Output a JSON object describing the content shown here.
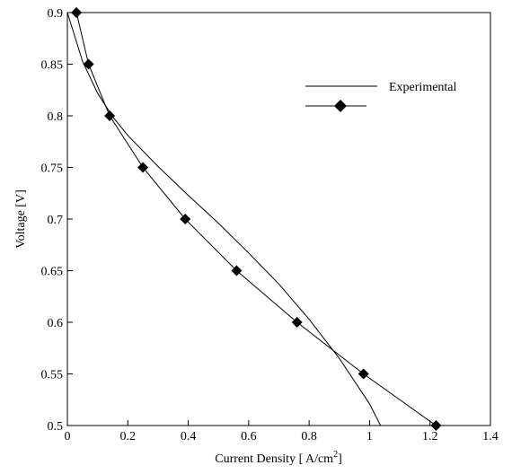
{
  "chart_data": {
    "type": "line",
    "xlabel": "Current Density [ A/cm",
    "xlabel_sup": "2",
    "xlabel_end": "]",
    "ylabel": "Voltage [V]",
    "xlim": [
      0,
      1.4
    ],
    "ylim": [
      0.5,
      0.9
    ],
    "xticks": [
      0,
      0.2,
      0.4,
      0.6,
      0.8,
      1,
      1.2,
      1.4
    ],
    "xtick_labels": [
      "0",
      "0.2",
      "0.4",
      "0.6",
      "0.8",
      "1",
      "1.2",
      "1.4"
    ],
    "yticks": [
      0.5,
      0.55,
      0.6,
      0.65,
      0.7,
      0.75,
      0.8,
      0.85,
      0.9
    ],
    "ytick_labels": [
      "0.5",
      "0.55",
      "0.6",
      "0.65",
      "0.7",
      "0.75",
      "0.8",
      "0.85",
      "0.9"
    ],
    "grid": false,
    "legend_position": "top-right",
    "series": [
      {
        "name": "",
        "marker": "none",
        "x": [
          0.0,
          0.05,
          0.1,
          0.15,
          0.2,
          0.3,
          0.4,
          0.5,
          0.6,
          0.7,
          0.8,
          0.9,
          1.0,
          1.05,
          1.09
        ],
        "y": [
          0.9,
          0.853,
          0.822,
          0.799,
          0.781,
          0.751,
          0.723,
          0.696,
          0.667,
          0.637,
          0.603,
          0.565,
          0.521,
          0.492,
          0.465
        ]
      },
      {
        "name": "Experimental",
        "marker": "diamond",
        "x": [
          0.03,
          0.07,
          0.14,
          0.25,
          0.39,
          0.56,
          0.76,
          0.98,
          1.22
        ],
        "y": [
          0.9,
          0.85,
          0.8,
          0.75,
          0.7,
          0.65,
          0.6,
          0.55,
          0.5
        ]
      }
    ],
    "colors": {
      "line": "#000000",
      "marker": "#000000"
    }
  }
}
